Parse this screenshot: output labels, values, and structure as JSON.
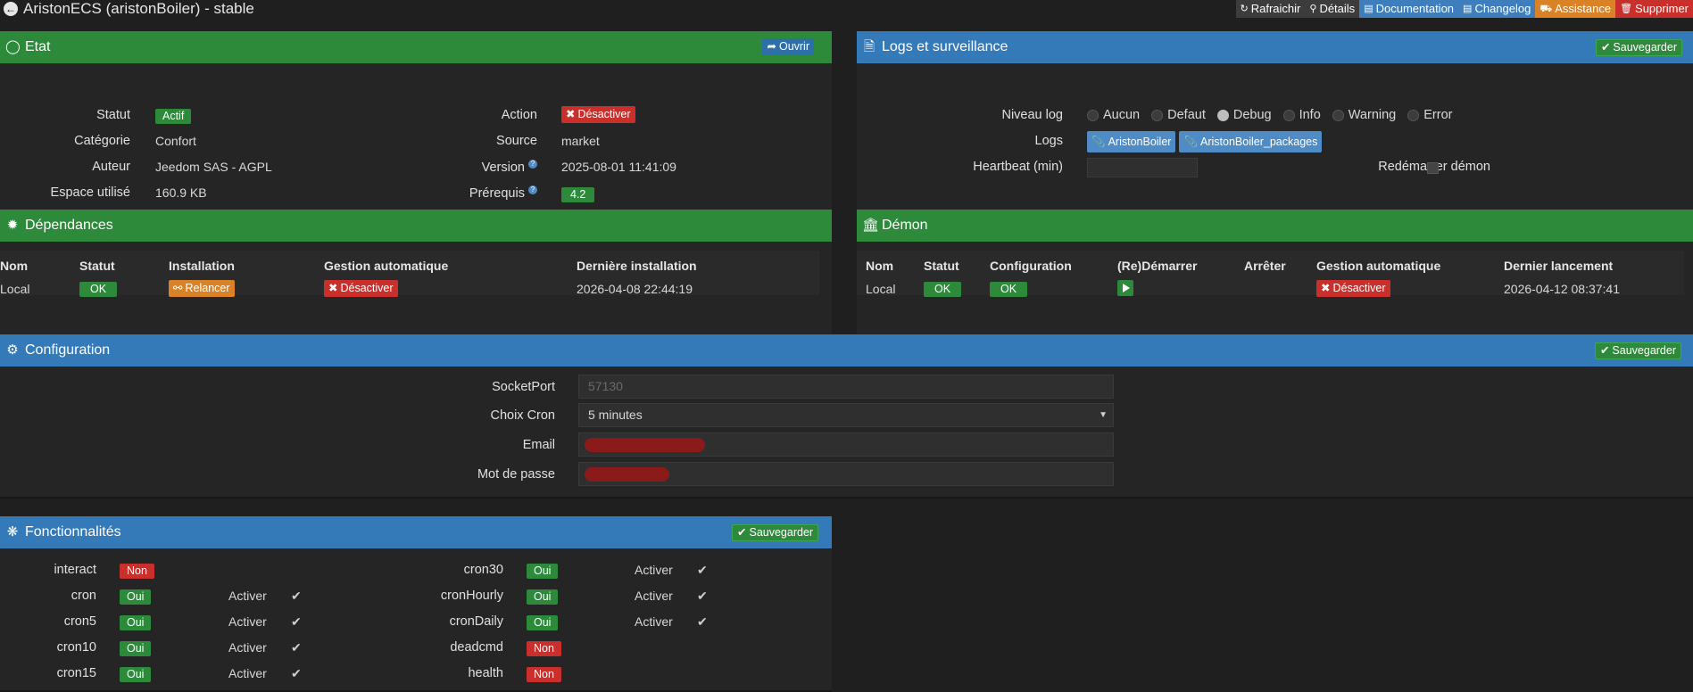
{
  "header": {
    "title": "AristonECS (aristonBoiler) - stable",
    "toolbar": {
      "refresh": "Rafraichir",
      "details": "Détails",
      "documentation": "Documentation",
      "changelog": "Changelog",
      "assistance": "Assistance",
      "delete": "Supprimer"
    }
  },
  "etat": {
    "title": "Etat",
    "open_btn": "Ouvrir",
    "statut_label": "Statut",
    "statut_value": "Actif",
    "categorie_label": "Catégorie",
    "categorie_value": "Confort",
    "auteur_label": "Auteur",
    "auteur_value": "Jeedom SAS",
    "licence_value": " - AGPL",
    "espace_label": "Espace utilisé",
    "espace_value": "160.9 KB",
    "action_label": "Action",
    "action_btn": "Désactiver",
    "source_label": "Source",
    "source_value": "market",
    "version_label": "Version",
    "version_value": "2025-08-01 11:41:09",
    "prerequis_label": "Prérequis",
    "prerequis_value": "4.2"
  },
  "logs": {
    "title": "Logs et surveillance",
    "save_btn": "Sauvegarder",
    "niveau_label": "Niveau log",
    "levels": [
      "Aucun",
      "Defaut",
      "Debug",
      "Info",
      "Warning",
      "Error"
    ],
    "selected_level": "Debug",
    "logs_label": "Logs",
    "log_buttons": [
      "AristonBoiler",
      "AristonBoiler_packages"
    ],
    "heartbeat_label": "Heartbeat (min)",
    "heartbeat_value": "",
    "restart_label": "Redémarrer démon"
  },
  "dependances": {
    "title": "Dépendances",
    "headers": [
      "Nom",
      "Statut",
      "Installation",
      "Gestion automatique",
      "Dernière installation"
    ],
    "row": {
      "nom": "Local",
      "statut": "OK",
      "installation_btn": "Relancer",
      "gestion_btn": "Désactiver",
      "derniere": "2026-04-08 22:44:19"
    }
  },
  "demon": {
    "title": "Démon",
    "headers": [
      "Nom",
      "Statut",
      "Configuration",
      "(Re)Démarrer",
      "Arrêter",
      "Gestion automatique",
      "Dernier lancement"
    ],
    "row": {
      "nom": "Local",
      "statut": "OK",
      "configuration": "OK",
      "gestion_btn": "Désactiver",
      "dernier": "2026-04-12 08:37:41"
    }
  },
  "configuration": {
    "title": "Configuration",
    "save_btn": "Sauvegarder",
    "socketport_label": "SocketPort",
    "socketport_placeholder": "57130",
    "cron_label": "Choix Cron",
    "cron_value": "5 minutes",
    "email_label": "Email",
    "password_label": "Mot de passe"
  },
  "fonctionnalites": {
    "title": "Fonctionnalités",
    "save_btn": "Sauvegarder",
    "activer_label": "Activer",
    "left": [
      {
        "name": "interact",
        "state": "Non",
        "activer": false
      },
      {
        "name": "cron",
        "state": "Oui",
        "activer": true
      },
      {
        "name": "cron5",
        "state": "Oui",
        "activer": true
      },
      {
        "name": "cron10",
        "state": "Oui",
        "activer": true
      },
      {
        "name": "cron15",
        "state": "Oui",
        "activer": true
      }
    ],
    "right": [
      {
        "name": "cron30",
        "state": "Oui",
        "activer": true
      },
      {
        "name": "cronHourly",
        "state": "Oui",
        "activer": true
      },
      {
        "name": "cronDaily",
        "state": "Oui",
        "activer": true
      },
      {
        "name": "deadcmd",
        "state": "Non",
        "activer": false
      },
      {
        "name": "health",
        "state": "Non",
        "activer": false
      }
    ]
  },
  "colors": {
    "green": "#2c8a3a",
    "blue": "#3479b8",
    "red": "#c9302c",
    "orange": "#d98326",
    "background": "#1f1f1f"
  }
}
